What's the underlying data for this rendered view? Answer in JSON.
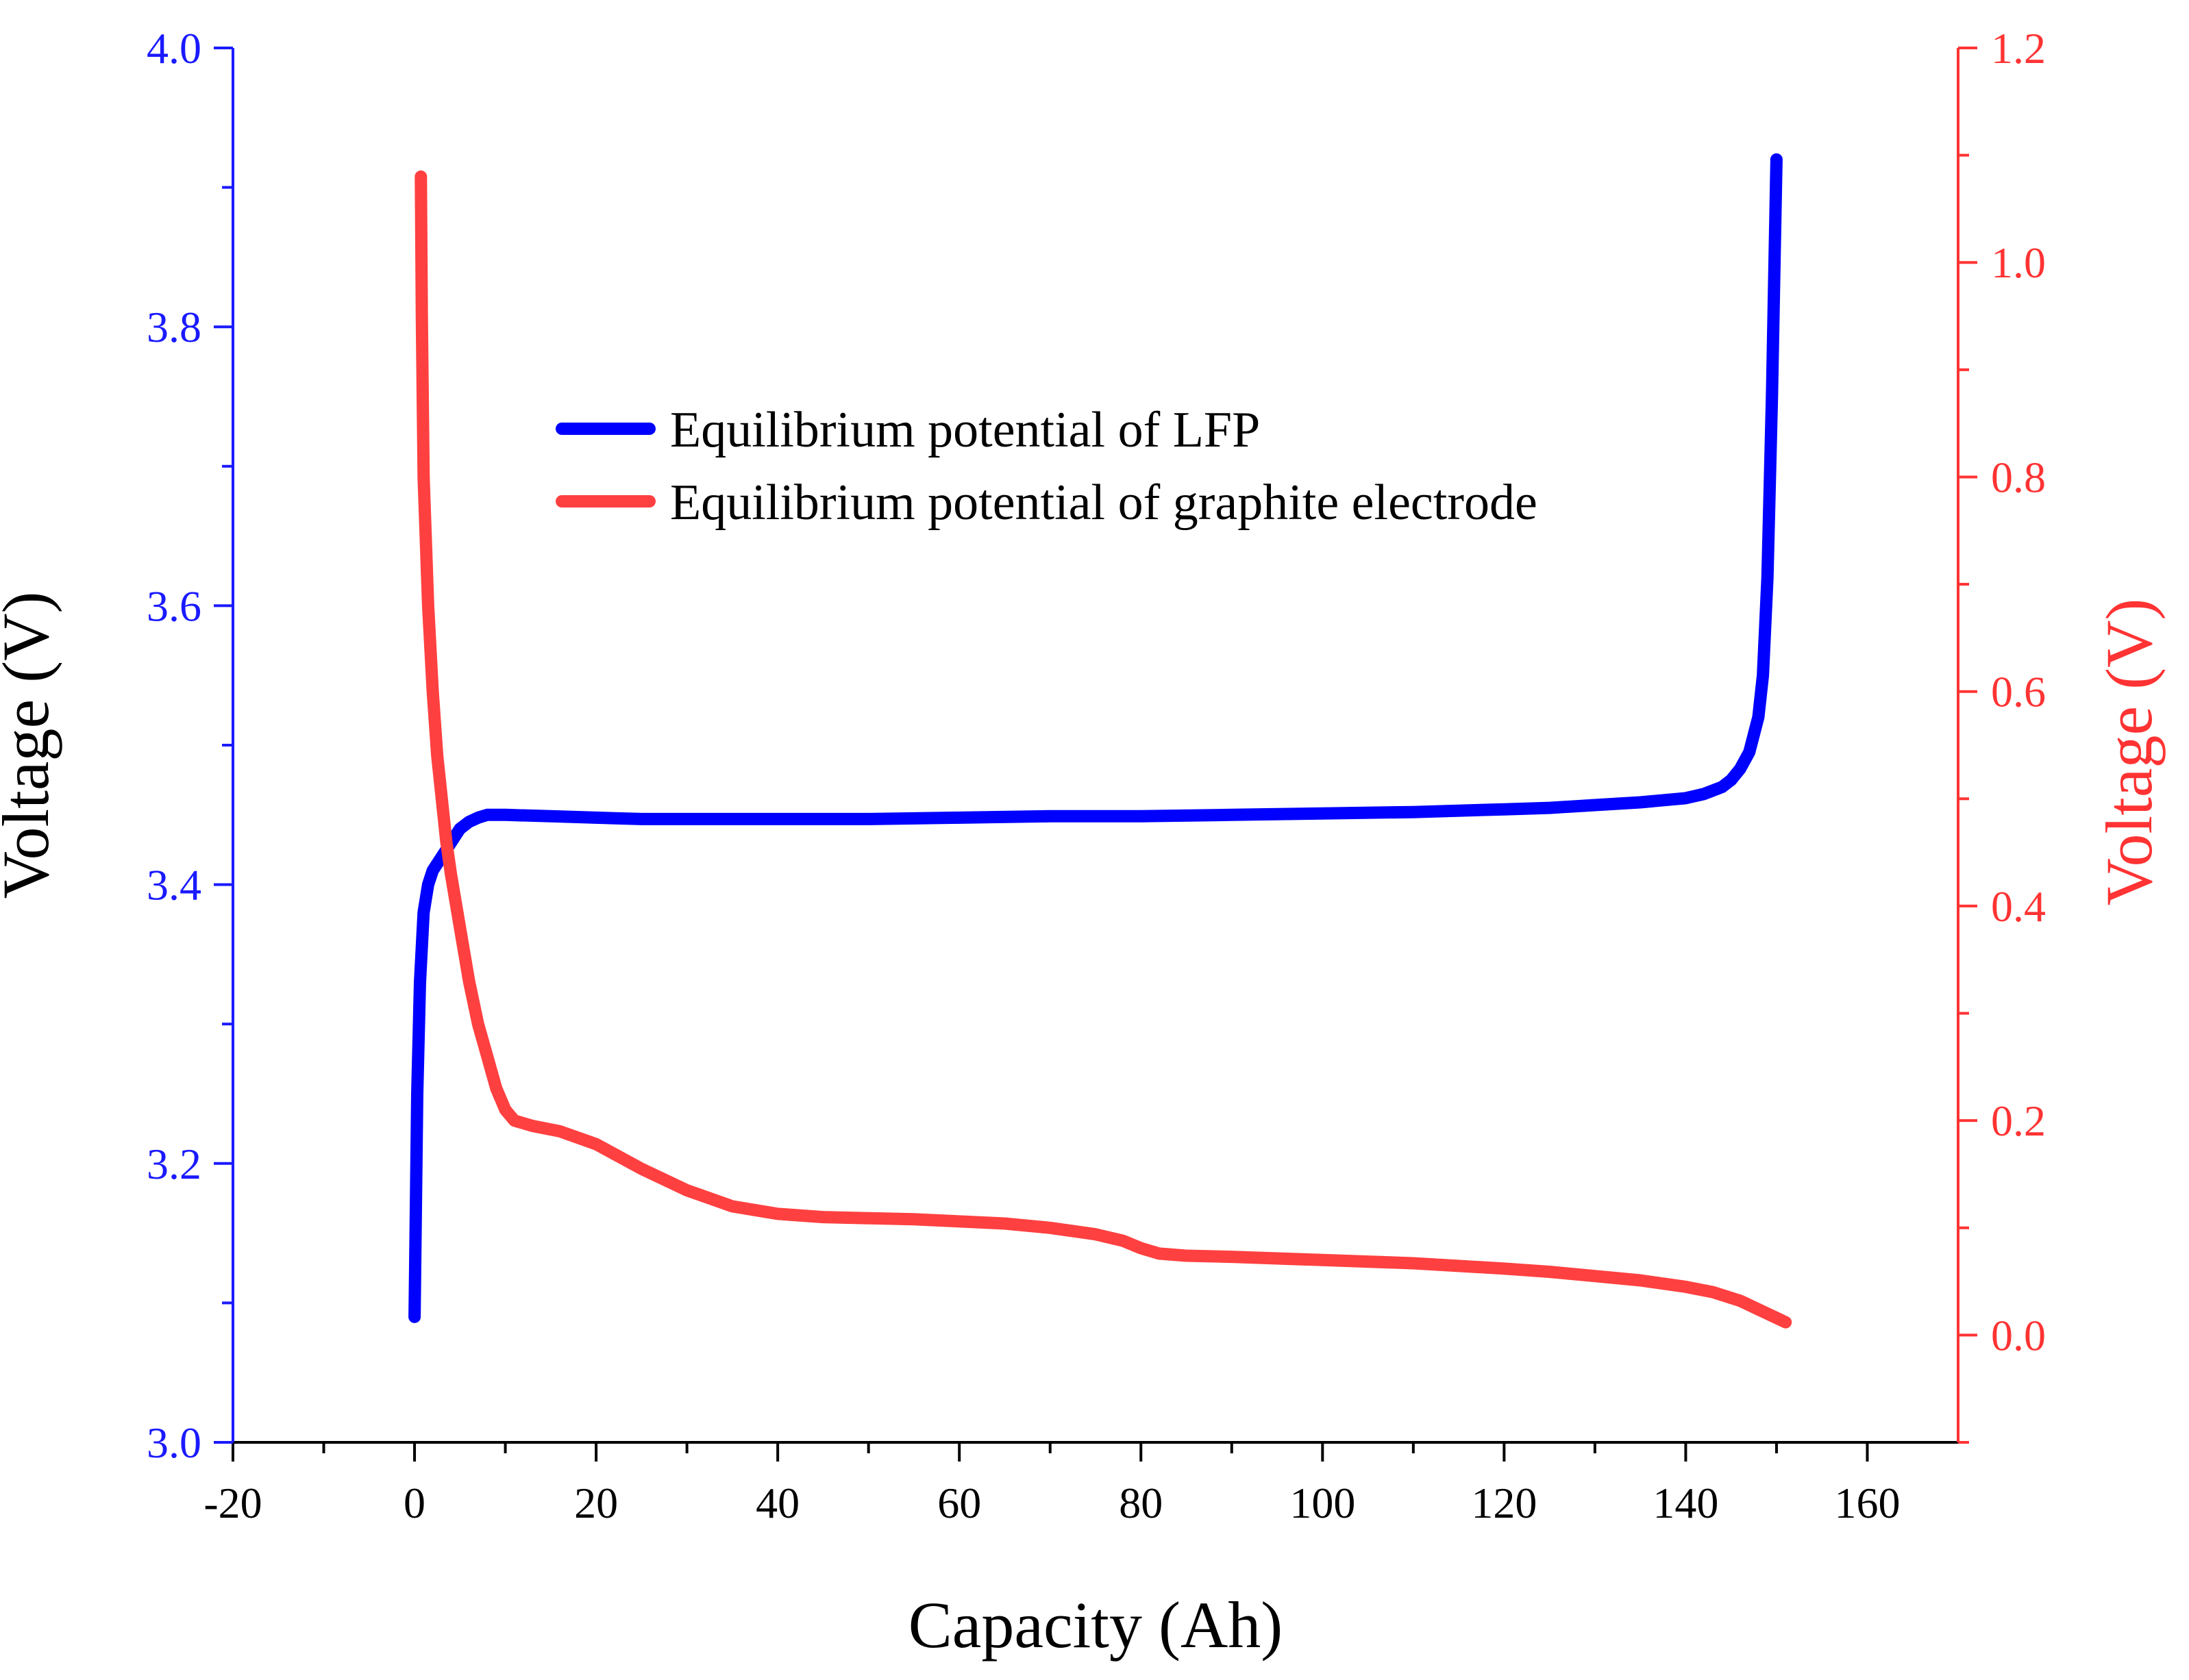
{
  "chart_data": {
    "type": "line",
    "title": "",
    "xlabel": "Capacity (Ah)",
    "ylabel_left": "Voltage (V)",
    "ylabel_right": "Voltage (V)",
    "xlim": [
      -20,
      170
    ],
    "ylim_left": [
      3.0,
      4.0
    ],
    "ylim_right": [
      -0.1,
      1.2
    ],
    "x_ticks": [
      "-20",
      "0",
      "20",
      "40",
      "60",
      "80",
      "100",
      "120",
      "140",
      "160"
    ],
    "y_left_ticks": [
      "3.0",
      "3.2",
      "3.4",
      "3.6",
      "3.8",
      "4.0"
    ],
    "y_right_ticks": [
      "0.0",
      "0.2",
      "0.4",
      "0.6",
      "0.8",
      "1.0",
      "1.2"
    ],
    "legend_position": "upper-center",
    "grid": false,
    "colors": {
      "left_axis": "#1a1aff",
      "right_axis": "#ff3333",
      "lfp_series": "#0000ff",
      "graphite_series": "#ff4040"
    },
    "series": [
      {
        "name": "Equilibrium potential of LFP",
        "axis": "left",
        "x": [
          0,
          0.3,
          0.6,
          1.0,
          1.5,
          2.0,
          3.0,
          4.0,
          5.0,
          6.0,
          7.0,
          8.0,
          10,
          15,
          20,
          25,
          30,
          35,
          40,
          50,
          60,
          70,
          80,
          90,
          100,
          110,
          120,
          125,
          130,
          135,
          140,
          142,
          144,
          145,
          146,
          147,
          148,
          148.5,
          149,
          149.5,
          150
        ],
        "values": [
          3.09,
          3.25,
          3.33,
          3.38,
          3.4,
          3.41,
          3.42,
          3.43,
          3.44,
          3.445,
          3.448,
          3.45,
          3.45,
          3.449,
          3.448,
          3.447,
          3.447,
          3.447,
          3.447,
          3.447,
          3.448,
          3.449,
          3.449,
          3.45,
          3.451,
          3.452,
          3.454,
          3.455,
          3.457,
          3.459,
          3.462,
          3.465,
          3.47,
          3.475,
          3.483,
          3.495,
          3.52,
          3.55,
          3.62,
          3.75,
          3.92
        ]
      },
      {
        "name": "Equilibrium potential of graphite electrode",
        "axis": "right",
        "x": [
          0.7,
          0.8,
          1.0,
          1.5,
          2.0,
          2.5,
          3.0,
          3.5,
          4.0,
          5.0,
          6.0,
          7.0,
          8.0,
          9.0,
          10,
          11,
          13,
          16,
          20,
          25,
          30,
          35,
          40,
          45,
          50,
          55,
          60,
          65,
          70,
          75,
          78,
          80,
          82,
          85,
          90,
          100,
          110,
          120,
          125,
          130,
          135,
          140,
          143,
          146,
          148,
          150,
          151
        ],
        "values": [
          1.08,
          0.95,
          0.8,
          0.68,
          0.6,
          0.54,
          0.5,
          0.46,
          0.43,
          0.38,
          0.33,
          0.29,
          0.26,
          0.23,
          0.21,
          0.2,
          0.195,
          0.19,
          0.178,
          0.155,
          0.135,
          0.12,
          0.113,
          0.11,
          0.109,
          0.108,
          0.106,
          0.104,
          0.1,
          0.094,
          0.088,
          0.081,
          0.076,
          0.074,
          0.073,
          0.07,
          0.067,
          0.062,
          0.059,
          0.055,
          0.051,
          0.045,
          0.04,
          0.032,
          0.024,
          0.016,
          0.012
        ]
      }
    ]
  }
}
